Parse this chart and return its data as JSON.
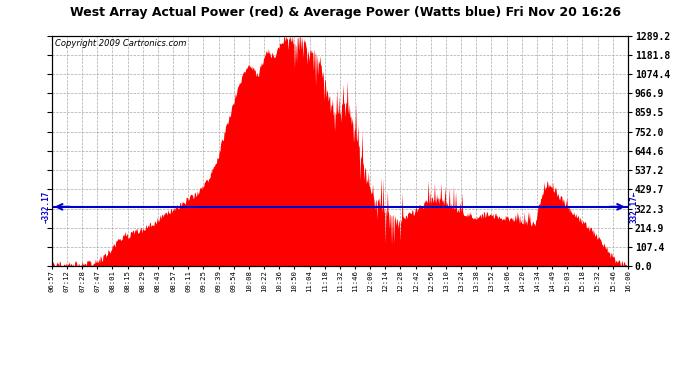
{
  "title": "West Array Actual Power (red) & Average Power (Watts blue) Fri Nov 20 16:26",
  "copyright": "Copyright 2009 Cartronics.com",
  "average_power": 332.17,
  "y_max": 1289.2,
  "y_ticks": [
    0.0,
    107.4,
    214.9,
    322.3,
    429.7,
    537.2,
    644.6,
    752.0,
    859.5,
    966.9,
    1074.4,
    1181.8,
    1289.2
  ],
  "background_color": "#ffffff",
  "fill_color": "#ff0000",
  "line_color": "#ff0000",
  "avg_line_color": "#0000cc",
  "grid_color": "#aaaaaa",
  "title_color": "#000000",
  "copyright_color": "#000000",
  "x_labels": [
    "06:57",
    "07:12",
    "07:28",
    "07:47",
    "08:01",
    "08:15",
    "08:29",
    "08:43",
    "08:57",
    "09:11",
    "09:25",
    "09:39",
    "09:54",
    "10:08",
    "10:22",
    "10:36",
    "10:50",
    "11:04",
    "11:18",
    "11:32",
    "11:46",
    "12:00",
    "12:14",
    "12:28",
    "12:42",
    "12:56",
    "13:10",
    "13:24",
    "13:38",
    "13:52",
    "14:06",
    "14:20",
    "14:34",
    "14:49",
    "15:03",
    "15:18",
    "15:32",
    "15:46",
    "16:00"
  ],
  "power_data": [
    5,
    5,
    5,
    6,
    5,
    8,
    12,
    8,
    5,
    6,
    5,
    7,
    10,
    8,
    12,
    15,
    18,
    25,
    30,
    40,
    55,
    70,
    85,
    100,
    120,
    140,
    155,
    170,
    175,
    165,
    175,
    185,
    190,
    195,
    200,
    210,
    215,
    220,
    230,
    245,
    255,
    265,
    280,
    290,
    300,
    310,
    315,
    325,
    330,
    340,
    350,
    365,
    375,
    385,
    395,
    410,
    425,
    440,
    460,
    480,
    505,
    535,
    570,
    615,
    670,
    720,
    770,
    820,
    870,
    920,
    970,
    1010,
    1050,
    1080,
    1100,
    1120,
    1110,
    1090,
    1060,
    1120,
    1150,
    1180,
    1200,
    1180,
    1160,
    1200,
    1220,
    1240,
    1260,
    1289,
    1260,
    1250,
    1230,
    1270,
    1289,
    1260,
    1230,
    1180,
    1200,
    1210,
    1180,
    1150,
    1100,
    1050,
    990,
    940,
    880,
    830,
    870,
    860,
    900,
    920,
    870,
    840,
    790,
    740,
    680,
    620,
    560,
    500,
    450,
    410,
    380,
    360,
    340,
    320,
    300,
    290,
    280,
    270,
    260,
    255,
    255,
    260,
    270,
    280,
    290,
    300,
    310,
    320,
    330,
    340,
    350,
    355,
    360,
    365,
    370,
    365,
    360,
    350,
    340,
    330,
    320,
    310,
    305,
    300,
    295,
    290,
    285,
    280,
    275,
    275,
    278,
    282,
    285,
    290,
    285,
    280,
    278,
    275,
    272,
    268,
    265,
    262,
    258,
    255,
    252,
    248,
    245,
    242,
    238,
    235,
    232,
    228,
    335,
    370,
    420,
    450,
    440,
    430,
    415,
    400,
    385,
    370,
    350,
    330,
    310,
    295,
    280,
    265,
    252,
    240,
    228,
    215,
    200,
    185,
    168,
    150,
    130,
    110,
    90,
    68,
    48,
    30,
    18,
    10,
    5,
    3,
    2
  ]
}
